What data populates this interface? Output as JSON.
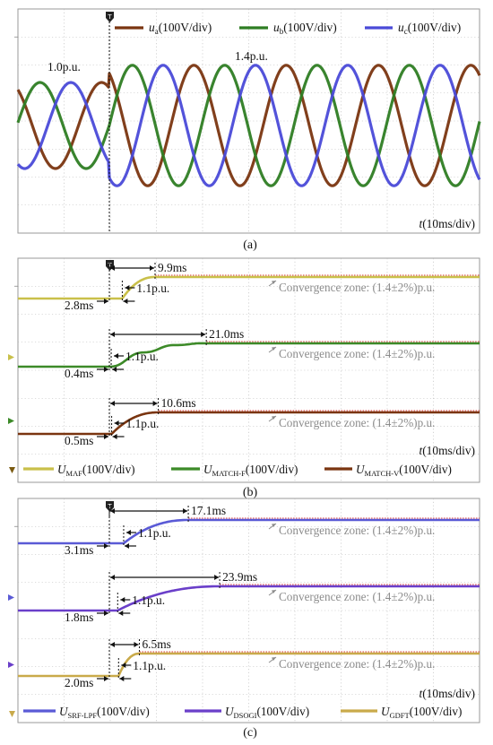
{
  "figure": {
    "panel_labels": [
      "(a)",
      "(b)",
      "(c)"
    ],
    "time_axis_label": "t(10ms/div)",
    "convergence_text": "Convergence zone: (1.4±2%)p.u."
  },
  "chart_data": [
    {
      "type": "line",
      "panel": "(a)",
      "xlabel": "t(10ms/div)",
      "x_unit": "ms",
      "x_range_ms": [
        -50,
        100
      ],
      "step_time_ms": 0,
      "series": [
        {
          "name": "ua(100V/div)",
          "color": "#7a3510",
          "phase_deg": 0
        },
        {
          "name": "ub(100V/div)",
          "color": "#2e7d23",
          "phase_deg": -120
        },
        {
          "name": "uc(100V/div)",
          "color": "#4a4ad8",
          "phase_deg": 120
        }
      ],
      "frequency_hz": 50,
      "amplitude_pu_before": 1.0,
      "amplitude_pu_after": 1.4,
      "annotations": [
        "1.0p.u.",
        "1.4p.u."
      ],
      "legend_position": "top-right"
    },
    {
      "type": "line",
      "panel": "(b)",
      "xlabel": "t(10ms/div)",
      "x_unit": "ms",
      "x_range_ms": [
        -50,
        100
      ],
      "step_time_ms": 0,
      "series": [
        {
          "name": "UMAF(100V/div)",
          "color": "#c9c04a",
          "initial_pu": 1.0,
          "final_pu": 1.4,
          "delay_ms": 2.8,
          "convergence_ms": 9.9,
          "mark_pu": 1.1
        },
        {
          "name": "UMATCH-F(100V/div)",
          "color": "#3c8a28",
          "initial_pu": 1.0,
          "final_pu": 1.4,
          "delay_ms": 0.4,
          "convergence_ms": 21.0,
          "mark_pu": 1.1
        },
        {
          "name": "UMATCH-V(100V/div)",
          "color": "#7a3510",
          "initial_pu": 1.0,
          "final_pu": 1.4,
          "delay_ms": 0.5,
          "convergence_ms": 10.6,
          "mark_pu": 1.1
        }
      ],
      "annotations": {
        "convergence": [
          "9.9ms",
          "21.0ms",
          "10.6ms"
        ],
        "delay": [
          "2.8ms",
          "0.4ms",
          "0.5ms"
        ],
        "marks": [
          "1.1p.u.",
          "1.1p.u.",
          "1.1p.u."
        ],
        "zone": "Convergence zone: (1.4±2%)p.u."
      },
      "legend_position": "bottom"
    },
    {
      "type": "line",
      "panel": "(c)",
      "xlabel": "t(10ms/div)",
      "x_unit": "ms",
      "x_range_ms": [
        -50,
        100
      ],
      "step_time_ms": 0,
      "series": [
        {
          "name": "USRF-LPF(100V/div)",
          "color": "#5a5ad6",
          "initial_pu": 1.0,
          "final_pu": 1.4,
          "delay_ms": 3.1,
          "convergence_ms": 17.1,
          "mark_pu": 1.1
        },
        {
          "name": "UDSOGI(100V/div)",
          "color": "#6a3fc9",
          "initial_pu": 1.0,
          "final_pu": 1.4,
          "delay_ms": 1.8,
          "convergence_ms": 23.9,
          "mark_pu": 1.1
        },
        {
          "name": "UGDFT(100V/div)",
          "color": "#c9aa4a",
          "initial_pu": 1.0,
          "final_pu": 1.4,
          "delay_ms": 2.0,
          "convergence_ms": 6.5,
          "mark_pu": 1.1
        }
      ],
      "annotations": {
        "convergence": [
          "17.1ms",
          "23.9ms",
          "6.5ms"
        ],
        "delay": [
          "3.1ms",
          "1.8ms",
          "2.0ms"
        ],
        "marks": [
          "1.1p.u.",
          "1.1p.u.",
          "1.1p.u."
        ],
        "zone": "Convergence zone: (1.4±2%)p.u."
      },
      "legend_position": "bottom"
    }
  ]
}
